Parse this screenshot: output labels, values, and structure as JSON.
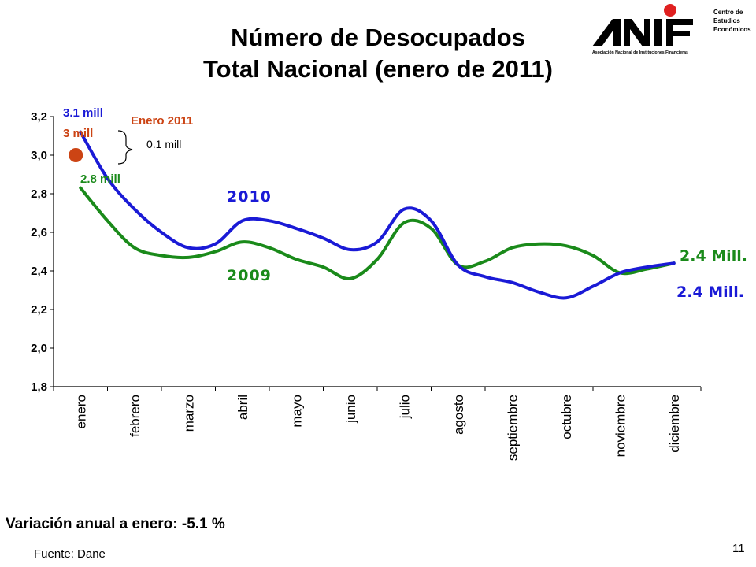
{
  "title": {
    "line1": "Número de Desocupados",
    "line2": "Total Nacional (enero de 2011)"
  },
  "logo": {
    "brand": "ANIF",
    "tagline": "Asociación Nacional de Instituciones Financieras",
    "side_line1": "Centro de",
    "side_line2": "Estudios",
    "side_line3": "Económicos",
    "colors": {
      "mark": "#000000",
      "dot": "#e02020"
    }
  },
  "chart_data": {
    "type": "line",
    "categories": [
      "enero",
      "febrero",
      "marzo",
      "abril",
      "mayo",
      "junio",
      "julio",
      "agosto",
      "septiembre",
      "octubre",
      "noviembre",
      "diciembre"
    ],
    "ylim": [
      1.8,
      3.2
    ],
    "yticks": [
      "1,8",
      "2,0",
      "2,2",
      "2,4",
      "2,6",
      "2,8",
      "3,0",
      "3,2"
    ],
    "grid": false,
    "series": [
      {
        "name": "2010",
        "color": "#1a1ad6",
        "x": [
          0,
          0.5,
          1,
          1.5,
          2,
          2.5,
          3,
          3.5,
          4,
          4.5,
          5,
          5.5,
          6,
          6.5,
          7,
          7.5,
          8,
          8.5,
          9,
          9.5,
          10,
          10.5,
          11
        ],
        "values": [
          3.12,
          2.88,
          2.72,
          2.6,
          2.52,
          2.54,
          2.66,
          2.66,
          2.62,
          2.57,
          2.51,
          2.55,
          2.72,
          2.66,
          2.43,
          2.37,
          2.34,
          2.29,
          2.26,
          2.32,
          2.39,
          2.42,
          2.44
        ]
      },
      {
        "name": "2009",
        "color": "#1a8a1a",
        "x": [
          0,
          0.5,
          1,
          1.5,
          2,
          2.5,
          3,
          3.5,
          4,
          4.5,
          5,
          5.5,
          6,
          6.5,
          7,
          7.5,
          8,
          8.5,
          9,
          9.5,
          10,
          10.5,
          11
        ],
        "values": [
          2.83,
          2.66,
          2.52,
          2.48,
          2.47,
          2.5,
          2.55,
          2.52,
          2.46,
          2.42,
          2.36,
          2.46,
          2.65,
          2.62,
          2.43,
          2.45,
          2.52,
          2.54,
          2.53,
          2.48,
          2.39,
          2.41,
          2.44
        ]
      }
    ],
    "point_2011": {
      "label": "Enero 2011",
      "x": 0,
      "value": 3.0,
      "color": "#cc4414"
    },
    "annotations": {
      "jan2010": "3.1 mill",
      "jan2011": "3 mill",
      "jan2009": "2.8 mill",
      "diff": "0.1 mill",
      "label_2010": "2010",
      "label_2009": "2009",
      "end_2009": "2.4 Mill.",
      "end_2010": "2.4 Mill."
    }
  },
  "footer": {
    "variation": "Variación anual a enero: -5.1 %",
    "source": "Fuente: Dane",
    "page": "11"
  }
}
